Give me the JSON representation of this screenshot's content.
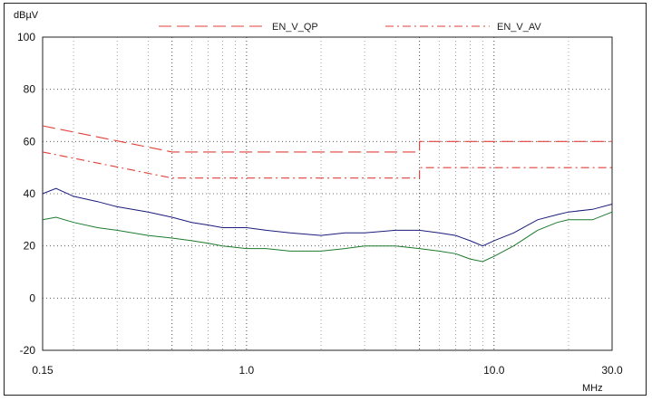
{
  "chart_data": {
    "type": "line",
    "title": "",
    "xlabel": "MHz",
    "ylabel": "dBµV",
    "x_scale": "log",
    "xlim": [
      0.15,
      30.0
    ],
    "ylim": [
      -20,
      100
    ],
    "yticks": [
      "-20",
      "0",
      "20",
      "40",
      "60",
      "80",
      "100"
    ],
    "xticks": [
      "0.15",
      "1.0",
      "10.0",
      "30.0"
    ],
    "grid": true,
    "legend_placement": "top",
    "legend": [
      {
        "name": "EN_V_QP",
        "color": "#e0403a",
        "style": "dashed"
      },
      {
        "name": "EN_V_AV",
        "color": "#e0403a",
        "style": "dash-dot"
      }
    ],
    "series": [
      {
        "name": "EN_V_QP",
        "color": "#e0403a",
        "style": "dashed",
        "x": [
          0.15,
          0.5,
          0.5,
          5.0,
          5.0,
          30.0
        ],
        "y": [
          66,
          56,
          56,
          56,
          60,
          60
        ]
      },
      {
        "name": "EN_V_AV",
        "color": "#e0403a",
        "style": "dash-dot",
        "x": [
          0.15,
          0.5,
          0.5,
          5.0,
          5.0,
          30.0
        ],
        "y": [
          56,
          46,
          46,
          46,
          50,
          50
        ]
      },
      {
        "color": "#1a1a7a",
        "style": "solid",
        "x": [
          0.15,
          0.17,
          0.2,
          0.25,
          0.3,
          0.4,
          0.5,
          0.6,
          0.7,
          0.8,
          1.0,
          1.2,
          1.5,
          2.0,
          2.5,
          3.0,
          4.0,
          5.0,
          6.0,
          7.0,
          8.0,
          9.0,
          10.0,
          12.0,
          15.0,
          18.0,
          20.0,
          25.0,
          30.0
        ],
        "y": [
          40,
          42,
          39,
          37,
          35,
          33,
          31,
          29,
          28,
          27,
          27,
          26,
          25,
          24,
          25,
          25,
          26,
          26,
          25,
          24,
          22,
          20,
          22,
          25,
          30,
          32,
          33,
          34,
          36
        ]
      },
      {
        "color": "#1c7a2c",
        "style": "solid",
        "x": [
          0.15,
          0.17,
          0.2,
          0.25,
          0.3,
          0.4,
          0.5,
          0.6,
          0.7,
          0.8,
          1.0,
          1.2,
          1.5,
          2.0,
          2.5,
          3.0,
          4.0,
          5.0,
          6.0,
          7.0,
          8.0,
          9.0,
          10.0,
          12.0,
          15.0,
          18.0,
          20.0,
          25.0,
          30.0
        ],
        "y": [
          30,
          31,
          29,
          27,
          26,
          24,
          23,
          22,
          21,
          20,
          19,
          19,
          18,
          18,
          19,
          20,
          20,
          19,
          18,
          17,
          15,
          14,
          16,
          20,
          26,
          29,
          30,
          30,
          33
        ]
      }
    ]
  }
}
